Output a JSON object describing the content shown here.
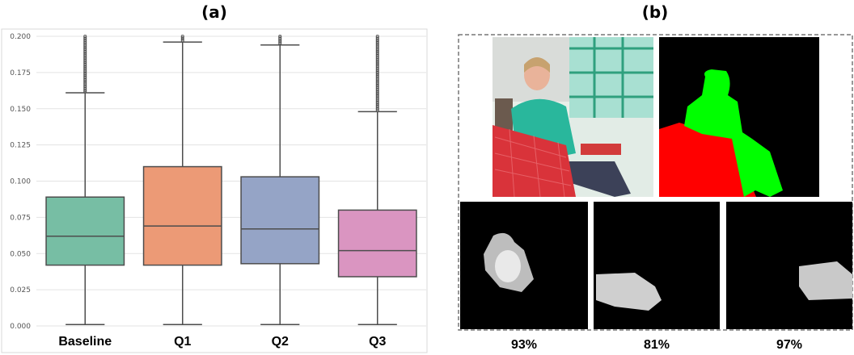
{
  "panels": {
    "a_label": "(a)",
    "b_label": "(b)"
  },
  "chart_data": {
    "type": "box",
    "categories": [
      "Baseline",
      "Q1",
      "Q2",
      "Q3"
    ],
    "ylim": [
      0.0,
      0.2
    ],
    "yticks": [
      "0.000",
      "0.025",
      "0.050",
      "0.075",
      "0.100",
      "0.125",
      "0.150",
      "0.175",
      "0.200"
    ],
    "grid": true,
    "boxes": [
      {
        "min": 0.001,
        "q1": 0.042,
        "median": 0.062,
        "q3": 0.089,
        "whisker_high": 0.161,
        "outliers_to": 0.2,
        "color": "#77bea4"
      },
      {
        "min": 0.001,
        "q1": 0.042,
        "median": 0.069,
        "q3": 0.11,
        "whisker_high": 0.196,
        "outliers_to": 0.2,
        "color": "#ec9a76"
      },
      {
        "min": 0.001,
        "q1": 0.043,
        "median": 0.067,
        "q3": 0.103,
        "whisker_high": 0.194,
        "outliers_to": 0.2,
        "color": "#95a4c6"
      },
      {
        "min": 0.001,
        "q1": 0.034,
        "median": 0.052,
        "q3": 0.08,
        "whisker_high": 0.148,
        "outliers_to": 0.2,
        "color": "#da95c1"
      }
    ]
  },
  "maps": [
    {
      "label": "93%"
    },
    {
      "label": "81%"
    },
    {
      "label": "97%"
    }
  ],
  "colors": {
    "person": "#00ff00",
    "table": "#ff0000",
    "mask_bg": "#000000"
  }
}
